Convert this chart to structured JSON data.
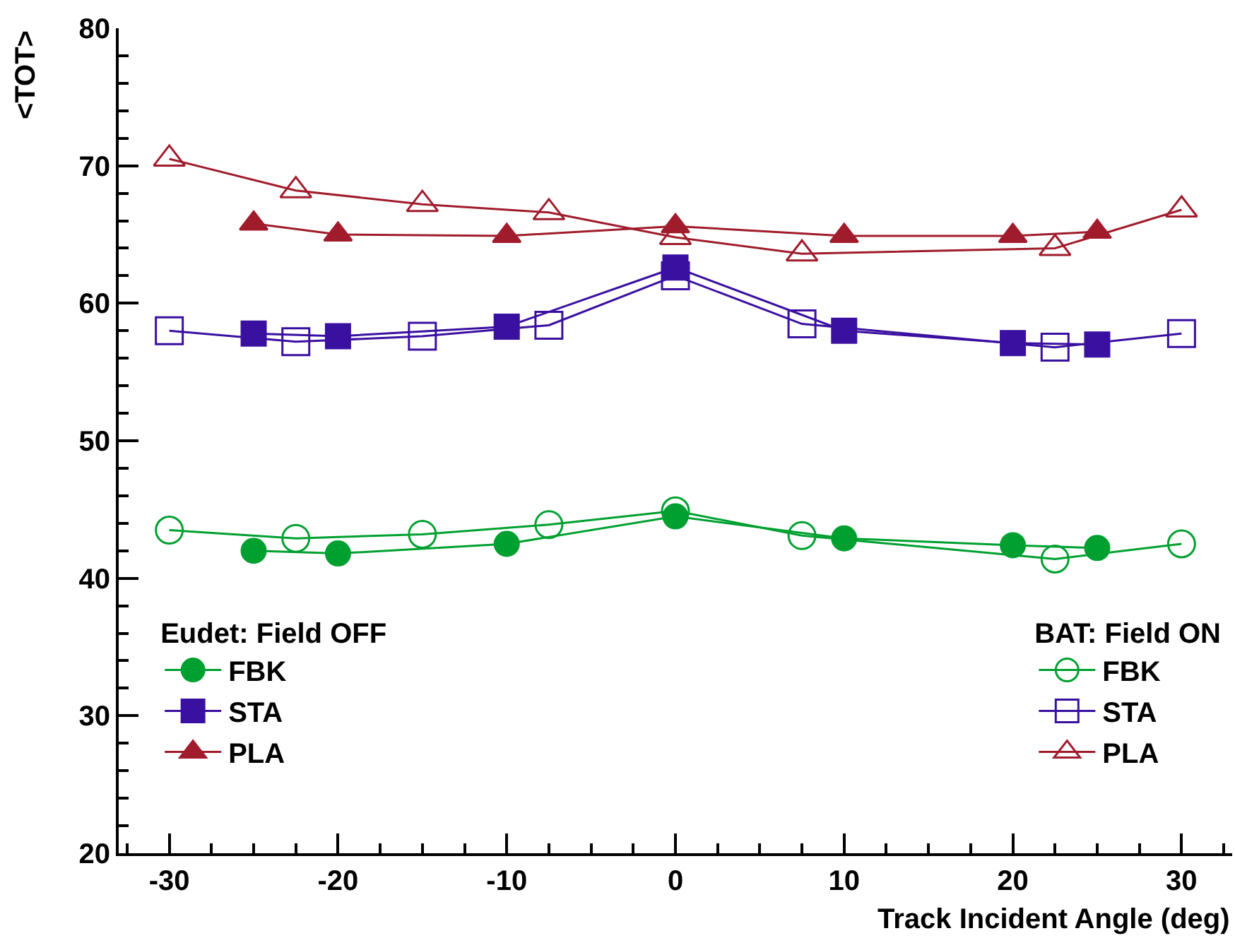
{
  "chart_data": {
    "type": "line",
    "xlabel": "Track Incident Angle (deg)",
    "ylabel": "<TOT>",
    "xlim": [
      -33,
      33
    ],
    "xticks": [
      -30,
      -20,
      -10,
      0,
      10,
      20,
      30
    ],
    "ylim": [
      20,
      80
    ],
    "yticks": [
      20,
      30,
      40,
      50,
      60,
      70,
      80
    ],
    "grid": false,
    "line_style": "solid",
    "legend": "bottom",
    "annotations": [
      "Eudet: Field OFF",
      "BAT: Field ON"
    ],
    "series": [
      {
        "name": "FBK",
        "color": "#00a030",
        "marker": "circle",
        "x": [
          -25,
          -20,
          -10,
          0,
          10,
          20,
          25
        ],
        "values": [
          42.0,
          41.8,
          42.5,
          44.5,
          42.9,
          42.4,
          42.2
        ]
      },
      {
        "name": "STA",
        "color": "#3a10a0",
        "marker": "square",
        "x": [
          -25,
          -20,
          -10,
          0,
          10,
          20,
          25
        ],
        "values": [
          57.8,
          57.6,
          58.3,
          62.6,
          58.0,
          57.1,
          57.0
        ]
      },
      {
        "name": "PLA",
        "color": "#a01c2c",
        "marker": "triangle",
        "x": [
          -25,
          -20,
          -10,
          0,
          10,
          20,
          25
        ],
        "values": [
          65.8,
          65.0,
          64.9,
          65.6,
          64.9,
          64.9,
          65.2
        ]
      },
      {
        "name": "FBK",
        "color": "#00a030",
        "marker": "circle",
        "x": [
          -30,
          -22.5,
          -15,
          -7.5,
          0,
          7.5,
          22.5,
          30
        ],
        "values": [
          43.5,
          42.9,
          43.2,
          43.9,
          44.9,
          43.1,
          41.4,
          42.5
        ]
      },
      {
        "name": "STA",
        "color": "#3a10a0",
        "marker": "square",
        "x": [
          -30,
          -22.5,
          -15,
          -7.5,
          0,
          7.5,
          22.5,
          30
        ],
        "values": [
          58.0,
          57.2,
          57.6,
          58.4,
          62.0,
          58.5,
          56.8,
          57.8
        ]
      },
      {
        "name": "PLA",
        "color": "#a01c2c",
        "marker": "triangle",
        "x": [
          -30,
          -22.5,
          -15,
          -7.5,
          0,
          7.5,
          22.5,
          30
        ],
        "values": [
          70.5,
          68.2,
          67.2,
          66.6,
          64.8,
          63.6,
          64.0,
          66.8
        ]
      }
    ]
  }
}
